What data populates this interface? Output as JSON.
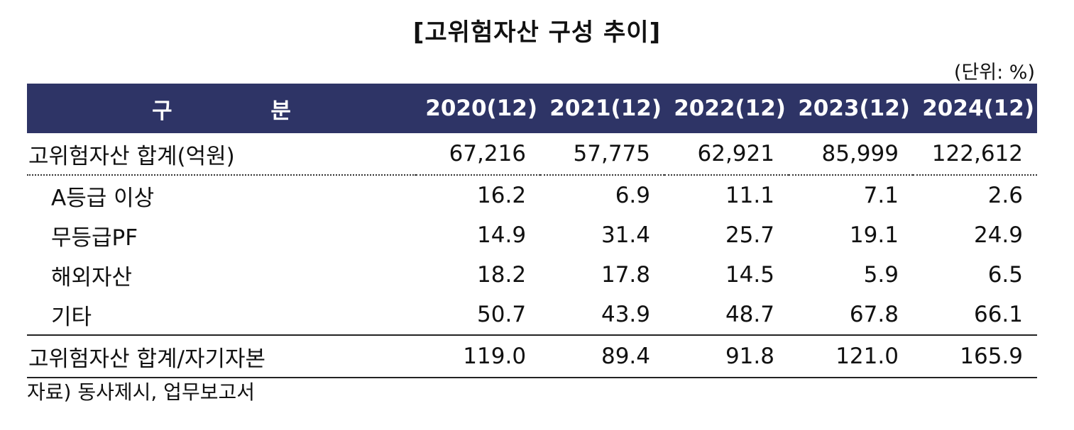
{
  "title": "[고위험자산 구성 추이]",
  "unit": "(단위: %)",
  "table": {
    "header": {
      "label": "구 분",
      "years": [
        "2020(12)",
        "2021(12)",
        "2022(12)",
        "2023(12)",
        "2024(12)"
      ]
    },
    "rows": [
      {
        "label": "고위험자산 합계(억원)",
        "values": [
          "67,216",
          "57,775",
          "62,921",
          "85,999",
          "122,612"
        ]
      },
      {
        "label": "A등급 이상",
        "values": [
          "16.2",
          "6.9",
          "11.1",
          "7.1",
          "2.6"
        ]
      },
      {
        "label": "무등급PF",
        "values": [
          "14.9",
          "31.4",
          "25.7",
          "19.1",
          "24.9"
        ]
      },
      {
        "label": "해외자산",
        "values": [
          "18.2",
          "17.8",
          "14.5",
          "5.9",
          "6.5"
        ]
      },
      {
        "label": "기타",
        "values": [
          "50.7",
          "43.9",
          "48.7",
          "67.8",
          "66.1"
        ]
      },
      {
        "label": "고위험자산 합계/자기자본",
        "values": [
          "119.0",
          "89.4",
          "91.8",
          "121.0",
          "165.9"
        ]
      }
    ]
  },
  "source": "자료) 동사제시, 업무보고서"
}
